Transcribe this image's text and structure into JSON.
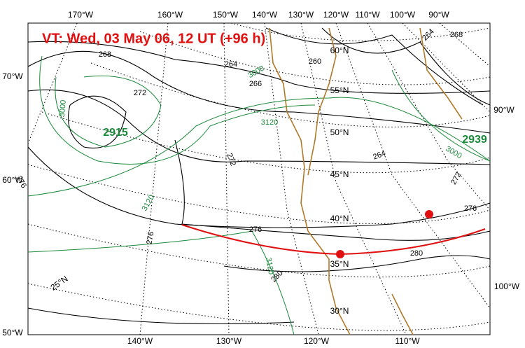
{
  "title": "VT:  Wed, 03 May 06, 12 UT (+96 h)",
  "lon_labels_top": [
    "170°W",
    "160°W",
    "150°W",
    "140°W",
    "130°W",
    "120°W",
    "110°W",
    "100°W",
    "90°W"
  ],
  "lon_labels_bottom": [
    "140°W",
    "130°W",
    "120°W",
    "110°W"
  ],
  "left_labels": [
    "70°W",
    "60°W",
    "50°W"
  ],
  "right_labels": [
    "90°W",
    "100°W"
  ],
  "lat_labels": [
    "60°N",
    "55°N",
    "50°N",
    "45°N",
    "40°N",
    "35°N",
    "30°N",
    "25°N"
  ],
  "thickness_labels": [
    "268",
    "264",
    "260",
    "266",
    "272",
    "272",
    "264",
    "276",
    "276",
    "276",
    "272",
    "276",
    "280",
    "280",
    "264",
    "268"
  ],
  "height_labels": [
    "3000",
    "3000",
    "3120",
    "3120",
    "3000",
    "3120"
  ],
  "center_labels": [
    "2915",
    "2939"
  ]
}
